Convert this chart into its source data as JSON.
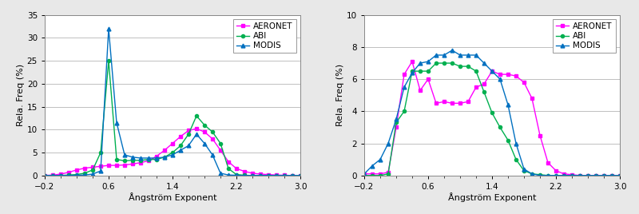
{
  "left": {
    "xlabel": "Ångström Exponent",
    "ylabel": "Rela. Freq (%)",
    "ylim": [
      0,
      35
    ],
    "yticks": [
      0,
      5,
      10,
      15,
      20,
      25,
      30,
      35
    ],
    "xlim": [
      -0.2,
      3.0
    ],
    "xticks": [
      -0.2,
      0.6,
      1.4,
      2.2,
      3.0
    ],
    "aeronet_x": [
      -0.2,
      -0.1,
      0.0,
      0.1,
      0.2,
      0.3,
      0.4,
      0.5,
      0.6,
      0.7,
      0.8,
      0.9,
      1.0,
      1.1,
      1.2,
      1.3,
      1.4,
      1.5,
      1.6,
      1.7,
      1.8,
      1.9,
      2.0,
      2.1,
      2.2,
      2.3,
      2.4,
      2.5,
      2.6,
      2.7,
      2.8,
      2.9,
      3.0
    ],
    "aeronet_y": [
      0.0,
      0.1,
      0.3,
      0.7,
      1.2,
      1.6,
      1.8,
      2.0,
      2.2,
      2.2,
      2.3,
      2.5,
      2.8,
      3.2,
      4.2,
      5.5,
      7.0,
      8.5,
      9.8,
      10.2,
      9.5,
      8.0,
      5.5,
      3.0,
      1.5,
      0.9,
      0.5,
      0.3,
      0.2,
      0.1,
      0.05,
      0.0,
      0.0
    ],
    "abi_x": [
      -0.2,
      -0.1,
      0.0,
      0.1,
      0.2,
      0.3,
      0.4,
      0.5,
      0.6,
      0.7,
      0.8,
      0.9,
      1.0,
      1.1,
      1.2,
      1.3,
      1.4,
      1.5,
      1.6,
      1.7,
      1.8,
      1.9,
      2.0,
      2.1,
      2.2,
      2.3,
      2.4,
      2.5,
      2.6,
      2.7,
      2.8,
      2.9,
      3.0
    ],
    "abi_y": [
      0.0,
      0.0,
      0.0,
      0.1,
      0.2,
      0.5,
      1.2,
      5.0,
      25.0,
      3.5,
      3.2,
      3.3,
      3.3,
      3.5,
      3.5,
      4.0,
      5.0,
      6.5,
      9.0,
      13.0,
      11.0,
      9.5,
      7.0,
      1.5,
      0.2,
      0.05,
      0.0,
      0.0,
      0.0,
      0.0,
      0.0,
      0.0,
      0.0
    ],
    "modis_x": [
      -0.2,
      -0.1,
      0.0,
      0.1,
      0.2,
      0.3,
      0.4,
      0.5,
      0.6,
      0.7,
      0.8,
      0.9,
      1.0,
      1.1,
      1.2,
      1.3,
      1.4,
      1.5,
      1.6,
      1.7,
      1.8,
      1.9,
      2.0,
      2.1,
      2.2,
      2.3,
      2.4,
      2.5,
      2.6,
      2.7,
      2.8,
      2.9,
      3.0
    ],
    "modis_y": [
      0.0,
      0.0,
      0.0,
      0.0,
      0.05,
      0.1,
      0.3,
      1.0,
      32.0,
      11.5,
      4.5,
      4.0,
      3.8,
      3.8,
      3.8,
      4.0,
      4.5,
      5.5,
      6.5,
      9.0,
      7.0,
      4.5,
      0.5,
      0.1,
      0.05,
      0.0,
      0.0,
      0.0,
      0.0,
      0.0,
      0.0,
      0.0,
      0.0
    ]
  },
  "right": {
    "xlabel": "Ångström Exponent",
    "ylabel": "Rela. Freq (%)",
    "ylim": [
      0,
      10
    ],
    "yticks": [
      0,
      2,
      4,
      6,
      8,
      10
    ],
    "xlim": [
      -0.2,
      3.0
    ],
    "xticks": [
      -0.2,
      0.6,
      1.4,
      2.2,
      3.0
    ],
    "aeronet_x": [
      -0.2,
      -0.1,
      0.0,
      0.1,
      0.2,
      0.3,
      0.4,
      0.5,
      0.6,
      0.7,
      0.8,
      0.9,
      1.0,
      1.1,
      1.2,
      1.3,
      1.4,
      1.5,
      1.6,
      1.7,
      1.8,
      1.9,
      2.0,
      2.1,
      2.2,
      2.3,
      2.4,
      2.5,
      2.6,
      2.7,
      2.8,
      2.9,
      3.0
    ],
    "aeronet_y": [
      0.1,
      0.1,
      0.1,
      0.2,
      3.0,
      6.3,
      7.1,
      5.3,
      6.0,
      4.5,
      4.6,
      4.5,
      4.5,
      4.6,
      5.5,
      5.7,
      6.5,
      6.3,
      6.3,
      6.2,
      5.8,
      4.8,
      2.5,
      0.8,
      0.3,
      0.1,
      0.05,
      0.0,
      0.0,
      0.0,
      0.0,
      0.0,
      0.0
    ],
    "abi_x": [
      -0.2,
      -0.1,
      0.0,
      0.1,
      0.2,
      0.3,
      0.4,
      0.5,
      0.6,
      0.7,
      0.8,
      0.9,
      1.0,
      1.1,
      1.2,
      1.3,
      1.4,
      1.5,
      1.6,
      1.7,
      1.8,
      1.9,
      2.0,
      2.1,
      2.2,
      2.3,
      2.4,
      2.5,
      2.6,
      2.7,
      2.8,
      2.9,
      3.0
    ],
    "abi_y": [
      0.0,
      0.0,
      0.0,
      0.1,
      3.3,
      4.0,
      6.5,
      6.5,
      6.5,
      7.0,
      7.0,
      7.0,
      6.8,
      6.8,
      6.5,
      5.2,
      3.9,
      3.0,
      2.2,
      1.0,
      0.3,
      0.1,
      0.05,
      0.0,
      0.0,
      0.0,
      0.0,
      0.0,
      0.0,
      0.0,
      0.0,
      0.0,
      0.0
    ],
    "modis_x": [
      -0.2,
      -0.1,
      0.0,
      0.1,
      0.2,
      0.3,
      0.4,
      0.5,
      0.6,
      0.7,
      0.8,
      0.9,
      1.0,
      1.1,
      1.2,
      1.3,
      1.4,
      1.5,
      1.6,
      1.7,
      1.8,
      1.9,
      2.0,
      2.1,
      2.2,
      2.3,
      2.4,
      2.5,
      2.6,
      2.7,
      2.8,
      2.9,
      3.0
    ],
    "modis_y": [
      0.1,
      0.6,
      1.0,
      2.0,
      3.5,
      5.5,
      6.4,
      7.0,
      7.1,
      7.5,
      7.5,
      7.8,
      7.5,
      7.5,
      7.5,
      7.0,
      6.5,
      6.0,
      4.4,
      2.0,
      0.4,
      0.1,
      0.0,
      0.0,
      0.0,
      0.0,
      0.0,
      0.0,
      0.0,
      0.0,
      0.0,
      0.0,
      0.0
    ]
  },
  "colors": {
    "aeronet": "#FF00FF",
    "abi": "#00B050",
    "modis": "#0070C0"
  },
  "legend_labels": [
    "AERONET",
    "ABI",
    "MODIS"
  ],
  "marker_aeronet": "s",
  "marker_abi": "o",
  "marker_modis": "^",
  "bg_color": "#E8E8E8",
  "plot_bg": "#FFFFFF",
  "grid_color": "#C0C0C0"
}
